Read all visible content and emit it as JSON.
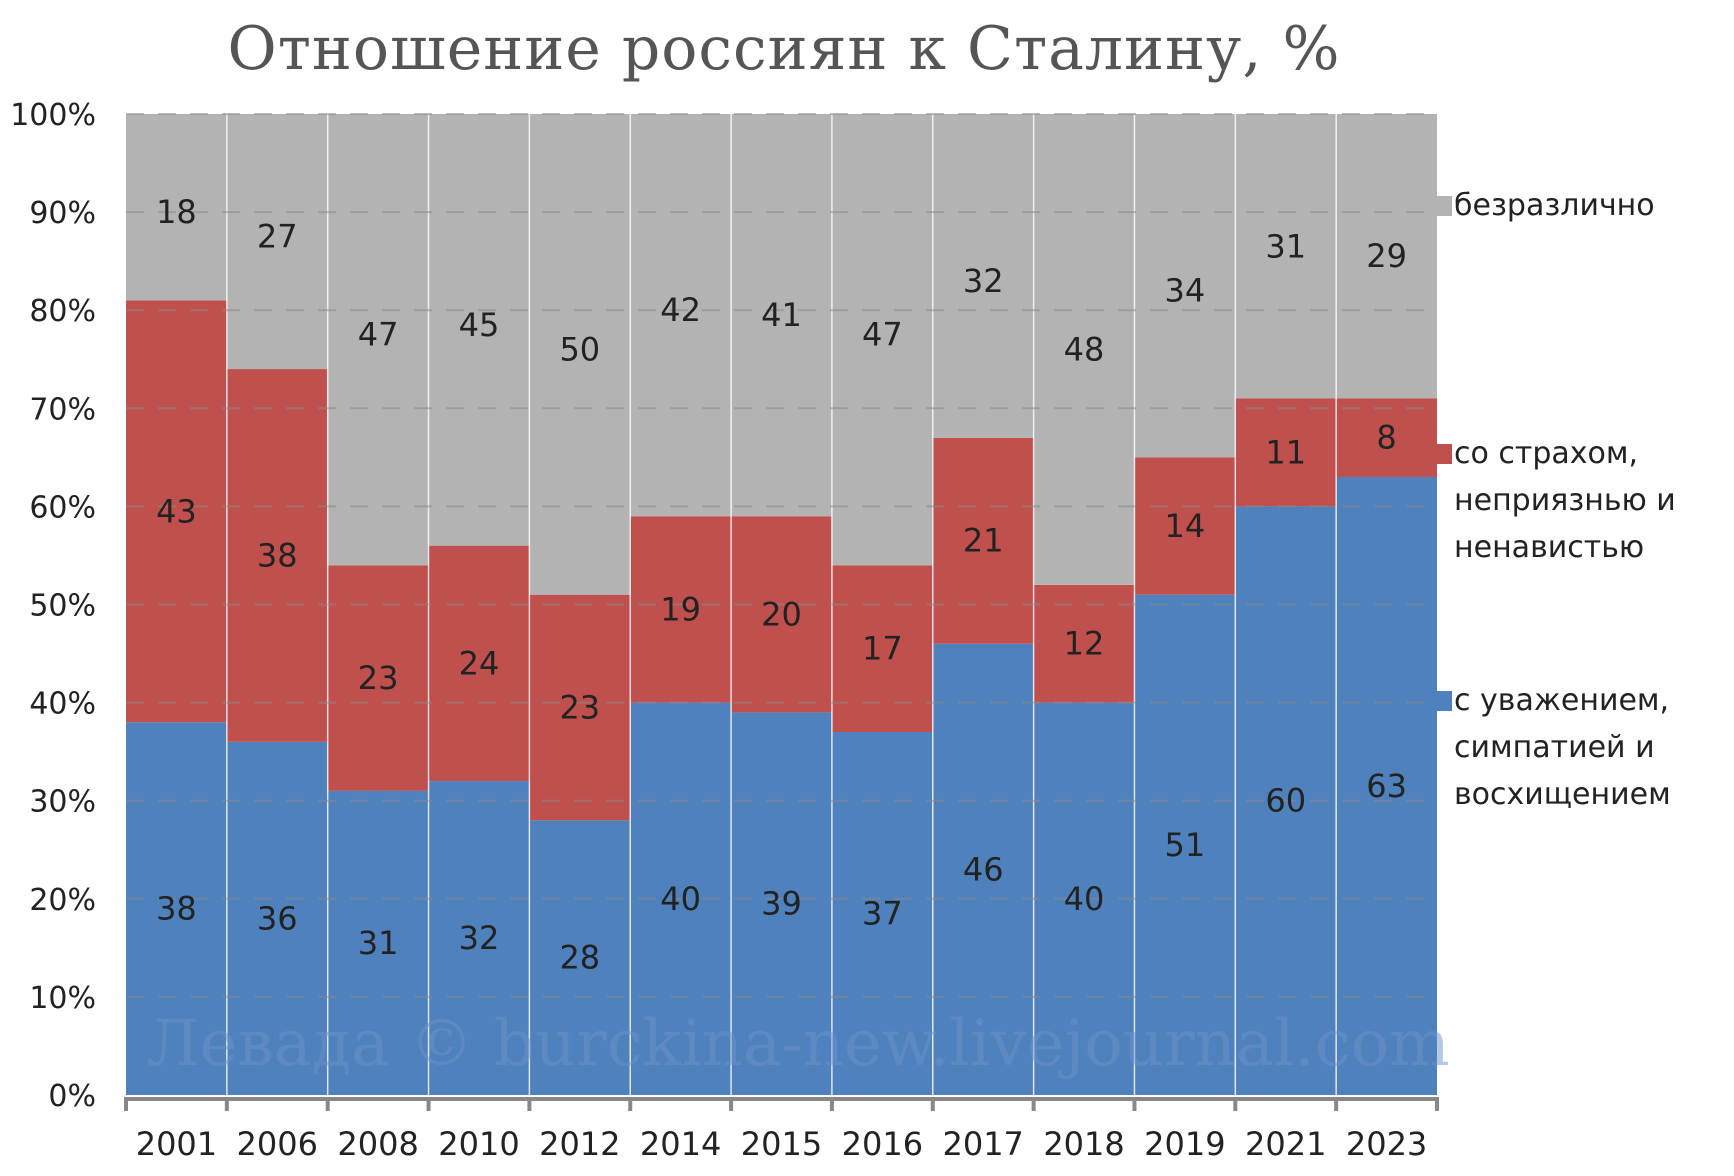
{
  "chart_data": {
    "type": "bar",
    "stacked": true,
    "title": "Отношение россиян к Сталину, %",
    "categories": [
      "2001",
      "2006",
      "2008",
      "2010",
      "2012",
      "2014",
      "2015",
      "2016",
      "2017",
      "2018",
      "2019",
      "2021",
      "2023"
    ],
    "series": [
      {
        "name": "с уважением, симпатией и восхищением",
        "color": "#4f81bd",
        "values": [
          38,
          36,
          31,
          32,
          28,
          40,
          39,
          37,
          46,
          40,
          51,
          60,
          63
        ]
      },
      {
        "name": "со страхом, неприязнью и ненавистью",
        "color": "#c0504d",
        "values": [
          43,
          38,
          23,
          24,
          23,
          19,
          20,
          17,
          21,
          12,
          14,
          11,
          8
        ]
      },
      {
        "name": "безразлично",
        "color": "#b3b3b3",
        "values": [
          18,
          27,
          47,
          45,
          50,
          42,
          41,
          47,
          32,
          48,
          34,
          31,
          29
        ]
      }
    ],
    "ylim": [
      0,
      100
    ],
    "yticks": [
      "0%",
      "10%",
      "20%",
      "30%",
      "40%",
      "50%",
      "60%",
      "70%",
      "80%",
      "90%",
      "100%"
    ],
    "grid": true,
    "legend_position": "right",
    "legend": [
      {
        "lines": [
          "безразлично"
        ],
        "color": "#b3b3b3"
      },
      {
        "lines": [
          "со страхом,",
          "неприязнью и",
          "ненавистью"
        ],
        "color": "#c0504d"
      },
      {
        "lines": [
          "с уважением,",
          "симпатией и",
          "восхищением"
        ],
        "color": "#4f81bd"
      }
    ],
    "watermark": "Левада © burckina-new.livejournal.com"
  }
}
